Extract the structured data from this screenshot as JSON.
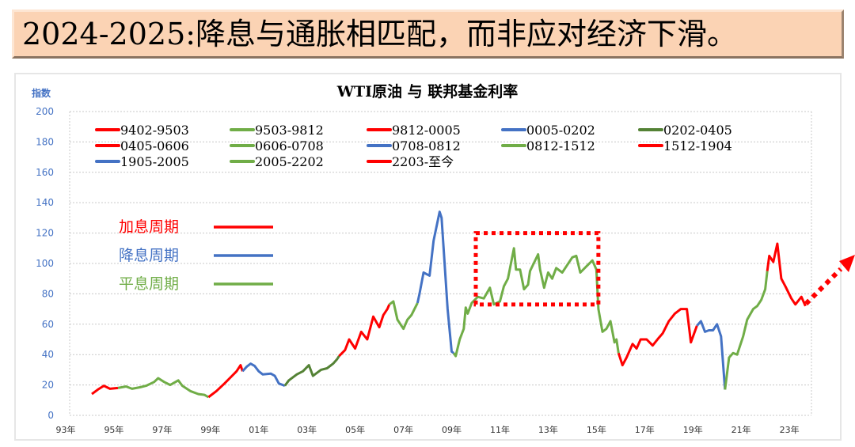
{
  "header": {
    "title": "2024-2025:降息与通胀相匹配，而非应对经济下滑。"
  },
  "chart_data": {
    "type": "line",
    "title": "WTI原油 与 联邦基金利率",
    "ylabel": "指数",
    "ylim": [
      0,
      200
    ],
    "yticks": [
      0,
      20,
      40,
      60,
      80,
      100,
      120,
      140,
      160,
      180,
      200
    ],
    "xlim": [
      "1993-01",
      "2025-01"
    ],
    "xticks": [
      "93年",
      "95年",
      "97年",
      "99年",
      "01年",
      "03年",
      "05年",
      "07年",
      "09年",
      "11年",
      "13年",
      "15年",
      "17年",
      "19年",
      "21年",
      "23年"
    ],
    "grid": "horizontal dotted",
    "legend_placement": "top",
    "colors": {
      "hike": "#ff0000",
      "cut": "#4472c4",
      "hold": "#70ad47",
      "hold_dark": "#548235"
    },
    "cycle_legend": [
      {
        "label": "加息周期",
        "color": "#ff0000"
      },
      {
        "label": "降息周期",
        "color": "#4472c4"
      },
      {
        "label": "平息周期",
        "color": "#70ad47"
      }
    ],
    "annotations": {
      "highlight_box": {
        "from": "2010-01",
        "to": "2015-02",
        "ymin": 73,
        "ymax": 120,
        "color": "#ff0000"
      },
      "trend_arrow": {
        "direction": "up",
        "color": "#ff0000"
      }
    },
    "series": [
      {
        "name": "9402-9503",
        "color": "#ff0000",
        "points": [
          [
            "1994-02",
            14
          ],
          [
            "1994-05",
            17
          ],
          [
            "1994-08",
            19.5
          ],
          [
            "1994-11",
            17.5
          ],
          [
            "1995-03",
            18
          ]
        ]
      },
      {
        "name": "9503-9812",
        "color": "#70ad47",
        "points": [
          [
            "1995-03",
            18
          ],
          [
            "1995-07",
            19
          ],
          [
            "1995-10",
            17.5
          ],
          [
            "1996-02",
            18.5
          ],
          [
            "1996-05",
            19.5
          ],
          [
            "1996-09",
            22
          ],
          [
            "1996-11",
            24.5
          ],
          [
            "1997-02",
            22
          ],
          [
            "1997-05",
            20
          ],
          [
            "1997-09",
            23
          ],
          [
            "1997-11",
            19.5
          ],
          [
            "1998-03",
            16
          ],
          [
            "1998-07",
            14
          ],
          [
            "1998-10",
            13.5
          ],
          [
            "1998-12",
            12
          ]
        ]
      },
      {
        "name": "9812-0005",
        "color": "#ff0000",
        "points": [
          [
            "1998-12",
            12
          ],
          [
            "1999-04",
            16
          ],
          [
            "1999-08",
            21
          ],
          [
            "1999-11",
            25
          ],
          [
            "2000-02",
            29
          ],
          [
            "2000-04",
            33
          ],
          [
            "2000-05",
            29
          ]
        ]
      },
      {
        "name": "0005-0202",
        "color": "#4472c4",
        "points": [
          [
            "2000-05",
            29
          ],
          [
            "2000-07",
            32
          ],
          [
            "2000-09",
            34
          ],
          [
            "2000-11",
            32.5
          ],
          [
            "2001-01",
            29
          ],
          [
            "2001-03",
            27
          ],
          [
            "2001-07",
            27.5
          ],
          [
            "2001-09",
            26
          ],
          [
            "2001-11",
            21
          ],
          [
            "2002-02",
            19.5
          ]
        ]
      },
      {
        "name": "0202-0405",
        "color": "#548235",
        "points": [
          [
            "2002-02",
            19.5
          ],
          [
            "2002-04",
            23
          ],
          [
            "2002-08",
            27
          ],
          [
            "2002-11",
            29
          ],
          [
            "2003-02",
            33
          ],
          [
            "2003-04",
            26
          ],
          [
            "2003-08",
            30
          ],
          [
            "2003-11",
            31
          ],
          [
            "2004-02",
            34
          ],
          [
            "2004-04",
            37
          ],
          [
            "2004-05",
            39
          ]
        ]
      },
      {
        "name": "0405-0606",
        "color": "#ff0000",
        "points": [
          [
            "2004-05",
            39
          ],
          [
            "2004-08",
            43
          ],
          [
            "2004-10",
            50
          ],
          [
            "2005-01",
            44
          ],
          [
            "2005-04",
            55
          ],
          [
            "2005-07",
            50
          ],
          [
            "2005-10",
            65
          ],
          [
            "2006-01",
            58
          ],
          [
            "2006-03",
            66
          ],
          [
            "2006-05",
            70
          ],
          [
            "2006-06",
            73
          ]
        ]
      },
      {
        "name": "0606-0708",
        "color": "#70ad47",
        "points": [
          [
            "2006-06",
            73
          ],
          [
            "2006-08",
            75
          ],
          [
            "2006-10",
            63
          ],
          [
            "2007-01",
            57
          ],
          [
            "2007-03",
            63
          ],
          [
            "2007-05",
            66
          ],
          [
            "2007-08",
            74
          ]
        ]
      },
      {
        "name": "0708-0812",
        "color": "#4472c4",
        "points": [
          [
            "2007-08",
            74
          ],
          [
            "2007-09",
            80
          ],
          [
            "2007-11",
            94
          ],
          [
            "2008-02",
            92
          ],
          [
            "2008-04",
            115
          ],
          [
            "2008-07",
            134
          ],
          [
            "2008-08",
            130
          ],
          [
            "2008-11",
            70
          ],
          [
            "2009-01",
            42
          ],
          [
            "2009-02",
            41
          ]
        ]
      },
      {
        "name": "0812-1512",
        "color": "#70ad47",
        "points": [
          [
            "2009-02",
            41
          ],
          [
            "2009-03",
            39
          ],
          [
            "2009-05",
            50
          ],
          [
            "2009-07",
            57
          ],
          [
            "2009-08",
            71
          ],
          [
            "2009-09",
            67
          ],
          [
            "2009-11",
            74
          ],
          [
            "2010-02",
            78
          ],
          [
            "2010-05",
            77
          ],
          [
            "2010-08",
            84
          ],
          [
            "2010-10",
            73
          ],
          [
            "2011-01",
            75
          ],
          [
            "2011-03",
            85
          ],
          [
            "2011-05",
            90
          ],
          [
            "2011-08",
            110
          ],
          [
            "2011-09",
            96
          ],
          [
            "2011-11",
            96
          ],
          [
            "2012-01",
            83
          ],
          [
            "2012-03",
            86
          ],
          [
            "2012-04",
            95
          ],
          [
            "2012-08",
            106
          ],
          [
            "2012-09",
            96
          ],
          [
            "2012-11",
            84
          ],
          [
            "2013-01",
            94
          ],
          [
            "2013-03",
            90
          ],
          [
            "2013-05",
            97
          ],
          [
            "2013-08",
            94
          ],
          [
            "2013-10",
            98
          ],
          [
            "2014-01",
            104
          ],
          [
            "2014-03",
            105
          ],
          [
            "2014-05",
            94
          ],
          [
            "2014-08",
            98
          ],
          [
            "2014-11",
            102
          ],
          [
            "2015-01",
            96
          ],
          [
            "2015-02",
            70
          ],
          [
            "2015-04",
            55
          ],
          [
            "2015-06",
            57
          ],
          [
            "2015-08",
            62
          ],
          [
            "2015-10",
            48
          ],
          [
            "2015-11",
            50
          ],
          [
            "2015-12",
            41
          ]
        ]
      },
      {
        "name": "1512-1904",
        "color": "#ff0000",
        "points": [
          [
            "2015-12",
            41
          ],
          [
            "2016-02",
            33
          ],
          [
            "2016-04",
            38
          ],
          [
            "2016-07",
            47
          ],
          [
            "2016-09",
            44
          ],
          [
            "2016-11",
            50
          ],
          [
            "2017-02",
            50
          ],
          [
            "2017-05",
            46
          ],
          [
            "2017-08",
            51
          ],
          [
            "2017-10",
            54
          ],
          [
            "2018-01",
            62
          ],
          [
            "2018-04",
            67
          ],
          [
            "2018-07",
            70
          ],
          [
            "2018-10",
            70
          ],
          [
            "2018-12",
            48
          ],
          [
            "2019-03",
            59
          ]
        ]
      },
      {
        "name": "1905-2005",
        "color": "#4472c4",
        "points": [
          [
            "2019-03",
            59
          ],
          [
            "2019-05",
            62
          ],
          [
            "2019-07",
            55
          ],
          [
            "2019-09",
            56
          ],
          [
            "2019-11",
            56
          ],
          [
            "2020-01",
            60
          ],
          [
            "2020-03",
            52
          ],
          [
            "2020-05",
            17
          ]
        ]
      },
      {
        "name": "2005-2202",
        "color": "#70ad47",
        "points": [
          [
            "2020-05",
            17
          ],
          [
            "2020-07",
            38
          ],
          [
            "2020-09",
            41
          ],
          [
            "2020-11",
            40
          ],
          [
            "2021-02",
            52
          ],
          [
            "2021-04",
            63
          ],
          [
            "2021-07",
            70
          ],
          [
            "2021-09",
            72
          ],
          [
            "2021-11",
            76
          ],
          [
            "2022-01",
            83
          ],
          [
            "2022-02",
            95
          ]
        ]
      },
      {
        "name": "2203-至今",
        "color": "#ff0000",
        "points": [
          [
            "2022-02",
            95
          ],
          [
            "2022-03",
            105
          ],
          [
            "2022-05",
            101
          ],
          [
            "2022-07",
            113
          ],
          [
            "2022-09",
            90
          ],
          [
            "2022-11",
            85
          ],
          [
            "2023-02",
            77
          ],
          [
            "2023-04",
            73
          ],
          [
            "2023-07",
            78
          ],
          [
            "2023-09",
            72
          ]
        ]
      }
    ]
  }
}
